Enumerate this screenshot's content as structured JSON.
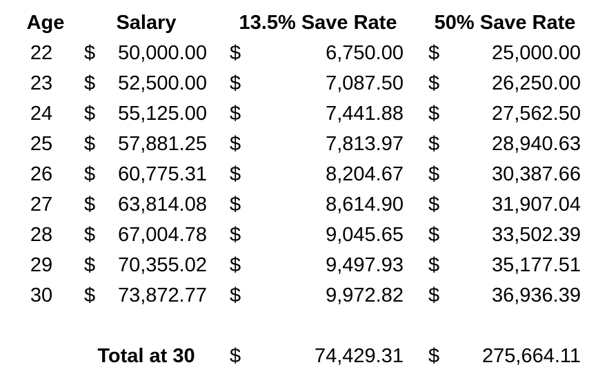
{
  "headers": {
    "age": "Age",
    "salary": "Salary",
    "rate1": "13.5% Save Rate",
    "rate2": "50% Save Rate"
  },
  "currency_symbol": "$",
  "rows": [
    {
      "age": "22",
      "salary": "50,000.00",
      "rate1": "6,750.00",
      "rate2": "25,000.00"
    },
    {
      "age": "23",
      "salary": "52,500.00",
      "rate1": "7,087.50",
      "rate2": "26,250.00"
    },
    {
      "age": "24",
      "salary": "55,125.00",
      "rate1": "7,441.88",
      "rate2": "27,562.50"
    },
    {
      "age": "25",
      "salary": "57,881.25",
      "rate1": "7,813.97",
      "rate2": "28,940.63"
    },
    {
      "age": "26",
      "salary": "60,775.31",
      "rate1": "8,204.67",
      "rate2": "30,387.66"
    },
    {
      "age": "27",
      "salary": "63,814.08",
      "rate1": "8,614.90",
      "rate2": "31,907.04"
    },
    {
      "age": "28",
      "salary": "67,004.78",
      "rate1": "9,045.65",
      "rate2": "33,502.39"
    },
    {
      "age": "29",
      "salary": "70,355.02",
      "rate1": "9,497.93",
      "rate2": "35,177.51"
    },
    {
      "age": "30",
      "salary": "73,872.77",
      "rate1": "9,972.82",
      "rate2": "36,936.39"
    }
  ],
  "total": {
    "label": "Total at 30",
    "rate1": "74,429.31",
    "rate2": "275,664.11"
  }
}
